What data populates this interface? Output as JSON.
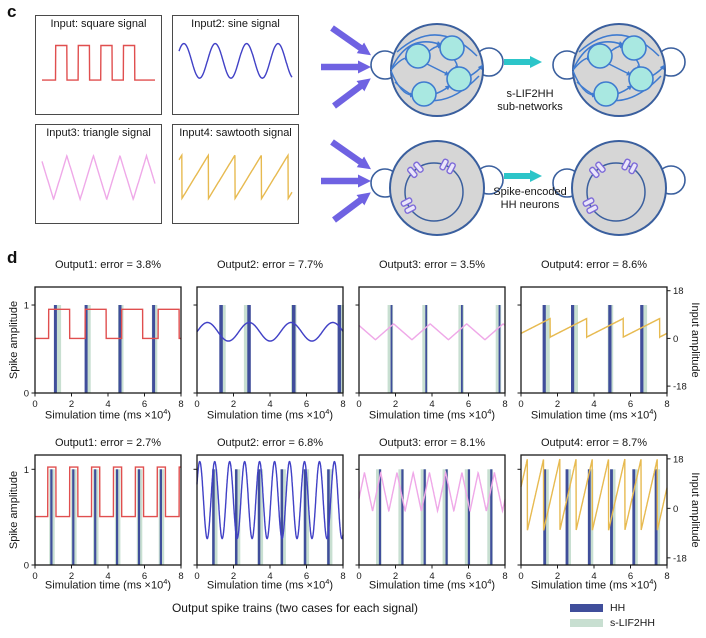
{
  "panel_c": {
    "label": "c",
    "inputs": [
      {
        "title": "Input: square signal",
        "wave": "square",
        "color": "#e04f4f"
      },
      {
        "title": "Input2: sine signal",
        "wave": "sine",
        "color": "#4141c6"
      },
      {
        "title": "Input3: triangle signal",
        "wave": "triangle",
        "color": "#efa8e8"
      },
      {
        "title": "Input4: sawtooth signal",
        "wave": "sawtooth",
        "color": "#e7ba50"
      }
    ],
    "networks": {
      "top_label_line1": "s-LIF2HH",
      "top_label_line2": "sub-networks",
      "bottom_label_line1": "Spike-encoded",
      "bottom_label_line2": "HH neurons"
    },
    "colors": {
      "arrow_purple": "#6f62e2",
      "arrow_teal": "#2cc5c9",
      "net_border": "#3a5f9e",
      "net_fill": "#d6d6d6",
      "node_fill": "#a9e8e1",
      "node_edge": "#3f7bd0",
      "spike_sym_fill": "#eae6fa",
      "spike_sym_edge": "#7d6ad9"
    }
  },
  "panel_d": {
    "label": "d",
    "ylabel_left": "Spike amplitude",
    "ylabel_right": "Input amplitude",
    "xlabel_pre": "Simulation time (ms ×10",
    "xlabel_sup": "4",
    "xlabel_post": ")",
    "caption": "Output spike trains (two cases for each signal)",
    "legend": [
      {
        "label": "HH",
        "color": "#404e9b"
      },
      {
        "label": "s-LIF2HH",
        "color": "#c8dfd1"
      }
    ]
  },
  "chart_data": {
    "type": "line",
    "x_range": [
      0,
      8
    ],
    "x_ticks": [
      0,
      2,
      4,
      6,
      8
    ],
    "spike_ticks": [
      "1",
      "0"
    ],
    "input_ticks": [
      "18",
      "0",
      "-18"
    ],
    "colors": {
      "hh_bar": "#404e9b",
      "slif_bar": "#c8dfd1",
      "axis": "#1a1a1a"
    },
    "subplots": [
      {
        "title": "Output1: error = 3.8%",
        "color": "#e04f4f",
        "left_labels": true,
        "right_axis": false,
        "signal": {
          "type": "square",
          "p": 2,
          "t0": 0.75,
          "dur": 1.15,
          "hi": 11,
          "lo": 0
        },
        "hh": [
          1.12,
          2.8,
          4.66,
          6.5
        ],
        "slif": [
          1.28,
          2.9,
          4.7,
          6.55
        ],
        "hh_w": 3.0
      },
      {
        "title": "Output2: error = 7.7%",
        "color": "#4141c6",
        "left_labels": false,
        "right_axis": false,
        "signal": {
          "type": "sine",
          "p": 2.29,
          "c": 2.5,
          "A": 3.5,
          "x0": 0
        },
        "hh": [
          1.32,
          2.85,
          5.3,
          7.8
        ],
        "slif": [
          1.42,
          2.72,
          5.3,
          7.9
        ],
        "hh_w": 3.5
      },
      {
        "title": "Output3: error = 3.5%",
        "color": "#efa8e8",
        "left_labels": false,
        "right_axis": false,
        "signal": {
          "type": "triangle",
          "p": 2,
          "c": 2.5,
          "A": 3,
          "xp": 1.9
        },
        "hh": [
          1.78,
          3.68,
          5.64,
          7.7
        ],
        "slif": [
          1.72,
          3.62,
          5.6,
          7.64
        ],
        "hh_w": 1.8
      },
      {
        "title": "Output4: error = 8.6%",
        "color": "#e7ba50",
        "left_labels": false,
        "right_axis": true,
        "signal": {
          "type": "sawtooth",
          "p": 2,
          "c": 4,
          "A": 3.5,
          "xd": 1.6
        },
        "hh": [
          1.27,
          2.83,
          4.87,
          6.62
        ],
        "slif": [
          1.43,
          2.97,
          4.9,
          6.76
        ],
        "hh_w": 3.2
      },
      {
        "title": "Output1: error = 2.7%",
        "color": "#e04f4f",
        "left_labels": true,
        "right_axis": false,
        "signal": {
          "type": "square",
          "p": 1.2,
          "t0": 0.7,
          "dur": 0.45,
          "hi": 15,
          "lo": -3
        },
        "hh": [
          0.9,
          2.1,
          3.3,
          4.5,
          5.7,
          6.9
        ],
        "slif": [
          0.93,
          2.13,
          3.33,
          4.53,
          5.73,
          6.93
        ],
        "hh_w": 2.2
      },
      {
        "title": "Output2: error = 6.8%",
        "color": "#4141c6",
        "left_labels": false,
        "right_axis": false,
        "signal": {
          "type": "sine",
          "p": 0.82,
          "c": 3,
          "A": 14,
          "x0": -0.055
        },
        "hh": [
          0.9,
          2.15,
          3.4,
          4.65,
          5.92,
          7.2
        ],
        "slif": [
          0.97,
          2.22,
          3.47,
          4.72,
          5.99,
          7.27
        ],
        "hh_w": 2.5
      },
      {
        "title": "Output3: error = 8.1%",
        "color": "#efa8e8",
        "left_labels": false,
        "right_axis": false,
        "signal": {
          "type": "triangle",
          "p": 0.89,
          "c": 6,
          "A": 7,
          "xp": 0.3
        },
        "hh": [
          1.15,
          2.38,
          3.6,
          4.8,
          6.02,
          7.25
        ],
        "slif": [
          1.08,
          2.31,
          3.53,
          4.73,
          5.95,
          7.18
        ],
        "hh_w": 2.2
      },
      {
        "title": "Output4: error = 8.7%",
        "color": "#e7ba50",
        "left_labels": false,
        "right_axis": true,
        "signal": {
          "type": "sawtooth",
          "p": 0.89,
          "c": 5,
          "A": 13,
          "xd": 0.35
        },
        "hh": [
          1.3,
          2.52,
          3.74,
          4.96,
          6.18,
          7.4
        ],
        "slif": [
          1.37,
          2.59,
          3.81,
          5.03,
          6.25,
          7.47
        ],
        "hh_w": 2.8
      }
    ]
  }
}
